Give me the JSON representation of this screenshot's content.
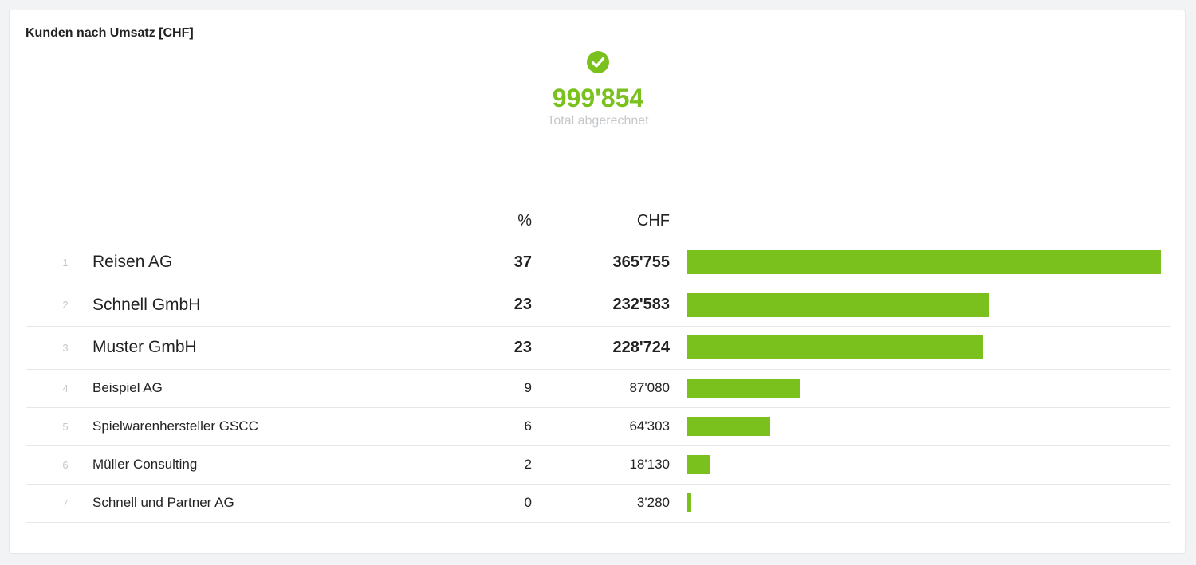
{
  "card": {
    "title": "Kunden nach Umsatz [CHF]"
  },
  "summary": {
    "icon": "check-circle-icon",
    "value": "999'854",
    "label": "Total abgerechnet"
  },
  "colors": {
    "accent": "#7ac11e",
    "muted": "#c5c8cb"
  },
  "table": {
    "headers": {
      "pct": "%",
      "chf": "CHF"
    }
  },
  "chart_data": {
    "type": "bar",
    "orientation": "horizontal",
    "title": "Kunden nach Umsatz [CHF]",
    "categories": [
      "Reisen AG",
      "Schnell GmbH",
      "Muster GmbH",
      "Beispiel AG",
      "Spielwarenhersteller GSCC",
      "Müller Consulting",
      "Schnell und Partner AG"
    ],
    "ranks": [
      "1",
      "2",
      "3",
      "4",
      "5",
      "6",
      "7"
    ],
    "percent": [
      "37",
      "23",
      "23",
      "9",
      "6",
      "2",
      "0"
    ],
    "value_labels": [
      "365'755",
      "232'583",
      "228'724",
      "87'080",
      "64'303",
      "18'130",
      "3'280"
    ],
    "values": [
      365755,
      232583,
      228724,
      87080,
      64303,
      18130,
      3280
    ],
    "xlim": [
      0,
      365755
    ],
    "grid": false,
    "legend": "none"
  }
}
